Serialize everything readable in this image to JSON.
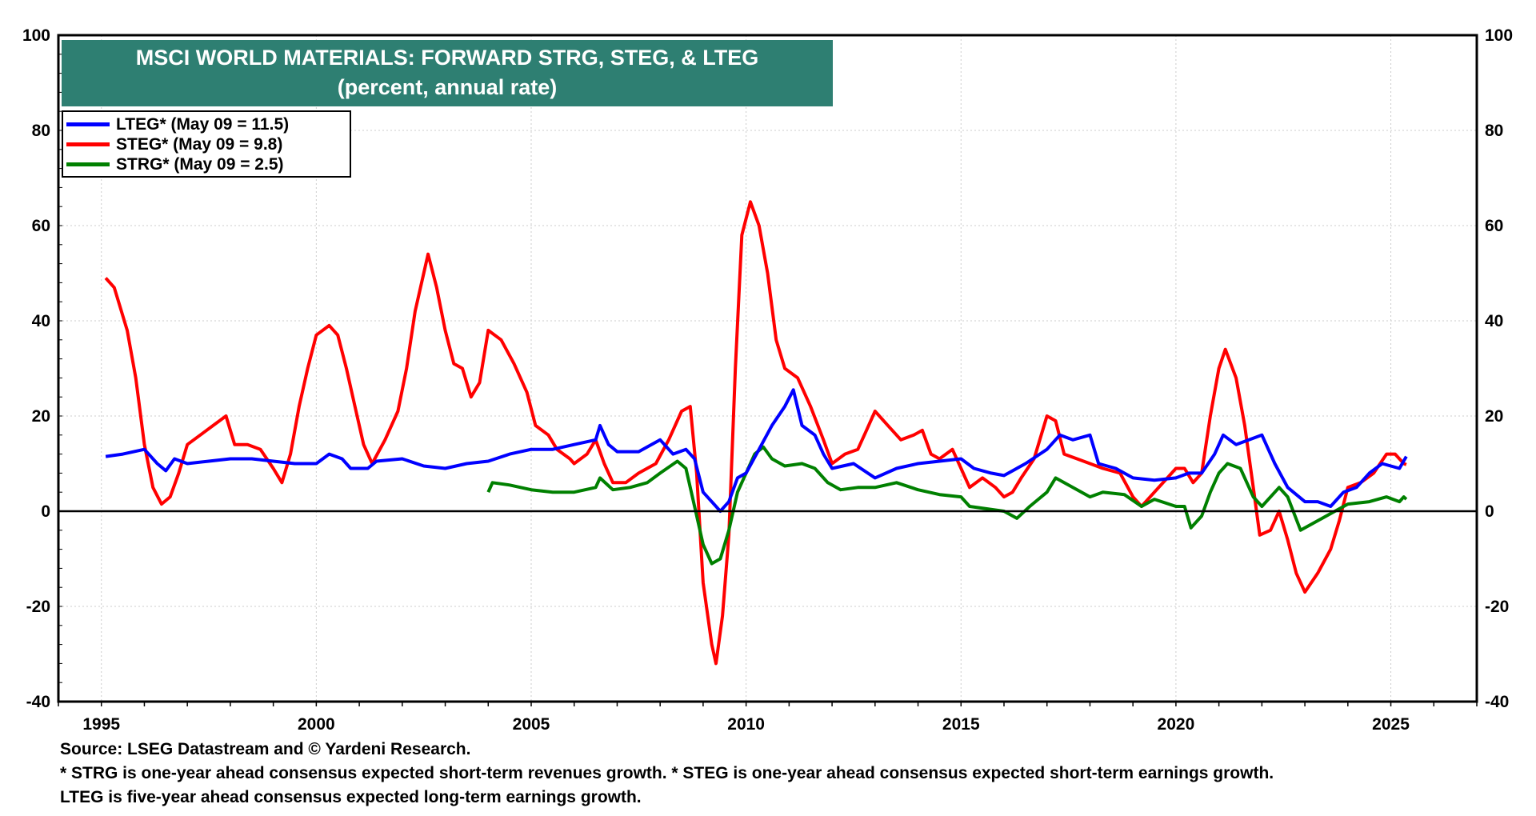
{
  "chart_data": {
    "type": "line",
    "title": "MSCI WORLD MATERIALS: FORWARD STRG, STEG, & LTEG",
    "subtitle": "(percent, annual rate)",
    "xlim": [
      1994,
      2027
    ],
    "ylim": [
      -40,
      100
    ],
    "x_ticks": [
      "1995",
      "2000",
      "2005",
      "2010",
      "2015",
      "2020",
      "2025"
    ],
    "y_ticks": [
      "100",
      "80",
      "60",
      "40",
      "20",
      "0",
      "-20",
      "-40"
    ],
    "grid": true,
    "legend_position": "top-left",
    "series": [
      {
        "name": "LTEG* (May 09 = 11.5)",
        "color": "#0000ff",
        "points": [
          [
            1995.1,
            11.5
          ],
          [
            1995.5,
            12
          ],
          [
            1996.0,
            13
          ],
          [
            1996.3,
            10
          ],
          [
            1996.5,
            8.5
          ],
          [
            1996.7,
            11
          ],
          [
            1997,
            10
          ],
          [
            1997.5,
            10.5
          ],
          [
            1998,
            11
          ],
          [
            1998.5,
            11
          ],
          [
            1999,
            10.5
          ],
          [
            1999.5,
            10
          ],
          [
            2000,
            10
          ],
          [
            2000.3,
            12
          ],
          [
            2000.6,
            11
          ],
          [
            2000.8,
            9
          ],
          [
            2001.2,
            9
          ],
          [
            2001.4,
            10.5
          ],
          [
            2002,
            11
          ],
          [
            2002.5,
            9.5
          ],
          [
            2003,
            9
          ],
          [
            2003.5,
            10
          ],
          [
            2004,
            10.5
          ],
          [
            2004.5,
            12
          ],
          [
            2005,
            13
          ],
          [
            2005.5,
            13
          ],
          [
            2006,
            14
          ],
          [
            2006.5,
            15
          ],
          [
            2006.6,
            18
          ],
          [
            2006.8,
            14
          ],
          [
            2007,
            12.5
          ],
          [
            2007.5,
            12.5
          ],
          [
            2008,
            15
          ],
          [
            2008.3,
            12
          ],
          [
            2008.6,
            13
          ],
          [
            2008.8,
            11
          ],
          [
            2009,
            4
          ],
          [
            2009.2,
            2
          ],
          [
            2009.4,
            0
          ],
          [
            2009.6,
            2
          ],
          [
            2009.8,
            7
          ],
          [
            2010,
            8
          ],
          [
            2010.3,
            13
          ],
          [
            2010.6,
            18
          ],
          [
            2010.9,
            22
          ],
          [
            2011.1,
            25.5
          ],
          [
            2011.3,
            18
          ],
          [
            2011.6,
            16
          ],
          [
            2011.8,
            12
          ],
          [
            2012,
            9
          ],
          [
            2012.5,
            10
          ],
          [
            2013,
            7
          ],
          [
            2013.5,
            9
          ],
          [
            2014,
            10
          ],
          [
            2014.5,
            10.5
          ],
          [
            2015,
            11
          ],
          [
            2015.3,
            9
          ],
          [
            2015.7,
            8
          ],
          [
            2016,
            7.5
          ],
          [
            2016.5,
            10
          ],
          [
            2017,
            13
          ],
          [
            2017.3,
            16
          ],
          [
            2017.6,
            15
          ],
          [
            2018,
            16
          ],
          [
            2018.2,
            10
          ],
          [
            2018.6,
            9
          ],
          [
            2019,
            7
          ],
          [
            2019.5,
            6.5
          ],
          [
            2020,
            7
          ],
          [
            2020.3,
            8
          ],
          [
            2020.6,
            8
          ],
          [
            2020.9,
            12
          ],
          [
            2021.1,
            16
          ],
          [
            2021.4,
            14
          ],
          [
            2021.7,
            15
          ],
          [
            2022,
            16
          ],
          [
            2022.3,
            10
          ],
          [
            2022.6,
            5
          ],
          [
            2023,
            2
          ],
          [
            2023.3,
            2
          ],
          [
            2023.6,
            1
          ],
          [
            2023.9,
            4
          ],
          [
            2024.2,
            5
          ],
          [
            2024.5,
            8
          ],
          [
            2024.8,
            10
          ],
          [
            2025,
            9.5
          ],
          [
            2025.2,
            9
          ],
          [
            2025.36,
            11.5
          ]
        ]
      },
      {
        "name": "STEG* (May 09 = 9.8)",
        "color": "#ff0000",
        "points": [
          [
            1995.1,
            49
          ],
          [
            1995.3,
            47
          ],
          [
            1995.6,
            38
          ],
          [
            1995.8,
            28
          ],
          [
            1996.0,
            14
          ],
          [
            1996.2,
            5
          ],
          [
            1996.4,
            1.5
          ],
          [
            1996.6,
            3
          ],
          [
            1996.8,
            8
          ],
          [
            1997.0,
            14
          ],
          [
            1997.3,
            16
          ],
          [
            1997.6,
            18
          ],
          [
            1997.9,
            20
          ],
          [
            1998.1,
            14
          ],
          [
            1998.4,
            14
          ],
          [
            1998.7,
            13
          ],
          [
            1999,
            9
          ],
          [
            1999.2,
            6
          ],
          [
            1999.4,
            12
          ],
          [
            1999.6,
            22
          ],
          [
            1999.8,
            30
          ],
          [
            2000,
            37
          ],
          [
            2000.3,
            39
          ],
          [
            2000.5,
            37
          ],
          [
            2000.7,
            30
          ],
          [
            2000.9,
            22
          ],
          [
            2001.1,
            14
          ],
          [
            2001.3,
            10
          ],
          [
            2001.6,
            15
          ],
          [
            2001.9,
            21
          ],
          [
            2002.1,
            30
          ],
          [
            2002.3,
            42
          ],
          [
            2002.5,
            50
          ],
          [
            2002.6,
            54
          ],
          [
            2002.8,
            47
          ],
          [
            2003,
            38
          ],
          [
            2003.2,
            31
          ],
          [
            2003.4,
            30
          ],
          [
            2003.6,
            24
          ],
          [
            2003.8,
            27
          ],
          [
            2004,
            38
          ],
          [
            2004.3,
            36
          ],
          [
            2004.6,
            31
          ],
          [
            2004.9,
            25
          ],
          [
            2005.1,
            18
          ],
          [
            2005.4,
            16
          ],
          [
            2005.6,
            13
          ],
          [
            2005.9,
            11
          ],
          [
            2006,
            10
          ],
          [
            2006.3,
            12
          ],
          [
            2006.5,
            15
          ],
          [
            2006.7,
            10
          ],
          [
            2006.9,
            6
          ],
          [
            2007.2,
            6
          ],
          [
            2007.5,
            8
          ],
          [
            2007.9,
            10
          ],
          [
            2008.2,
            15
          ],
          [
            2008.5,
            21
          ],
          [
            2008.7,
            22
          ],
          [
            2008.85,
            8
          ],
          [
            2009.0,
            -15
          ],
          [
            2009.2,
            -28
          ],
          [
            2009.3,
            -32
          ],
          [
            2009.45,
            -22
          ],
          [
            2009.6,
            -5
          ],
          [
            2009.75,
            30
          ],
          [
            2009.9,
            58
          ],
          [
            2010.1,
            65
          ],
          [
            2010.3,
            60
          ],
          [
            2010.5,
            50
          ],
          [
            2010.7,
            36
          ],
          [
            2010.9,
            30
          ],
          [
            2011.2,
            28
          ],
          [
            2011.5,
            22
          ],
          [
            2011.8,
            15
          ],
          [
            2012,
            10
          ],
          [
            2012.3,
            12
          ],
          [
            2012.6,
            13
          ],
          [
            2012.8,
            17
          ],
          [
            2013,
            21
          ],
          [
            2013.3,
            18
          ],
          [
            2013.6,
            15
          ],
          [
            2013.9,
            16
          ],
          [
            2014.1,
            17
          ],
          [
            2014.3,
            12
          ],
          [
            2014.5,
            11
          ],
          [
            2014.8,
            13
          ],
          [
            2015,
            9
          ],
          [
            2015.2,
            5
          ],
          [
            2015.5,
            7
          ],
          [
            2015.8,
            5
          ],
          [
            2016,
            3
          ],
          [
            2016.2,
            4
          ],
          [
            2016.4,
            7
          ],
          [
            2016.7,
            11
          ],
          [
            2017,
            20
          ],
          [
            2017.2,
            19
          ],
          [
            2017.4,
            12
          ],
          [
            2017.7,
            11
          ],
          [
            2018,
            10
          ],
          [
            2018.3,
            9
          ],
          [
            2018.7,
            8
          ],
          [
            2019.0,
            3
          ],
          [
            2019.2,
            1
          ],
          [
            2019.5,
            4
          ],
          [
            2019.8,
            7
          ],
          [
            2020,
            9
          ],
          [
            2020.2,
            9
          ],
          [
            2020.4,
            6
          ],
          [
            2020.6,
            8
          ],
          [
            2020.8,
            20
          ],
          [
            2021.0,
            30
          ],
          [
            2021.15,
            34
          ],
          [
            2021.4,
            28
          ],
          [
            2021.6,
            18
          ],
          [
            2021.8,
            5
          ],
          [
            2021.95,
            -5
          ],
          [
            2022.2,
            -4
          ],
          [
            2022.4,
            0
          ],
          [
            2022.6,
            -6
          ],
          [
            2022.8,
            -13
          ],
          [
            2023,
            -17
          ],
          [
            2023.3,
            -13
          ],
          [
            2023.6,
            -8
          ],
          [
            2023.8,
            -2
          ],
          [
            2024,
            5
          ],
          [
            2024.3,
            6
          ],
          [
            2024.6,
            8
          ],
          [
            2024.9,
            12
          ],
          [
            2025.1,
            12
          ],
          [
            2025.3,
            10
          ],
          [
            2025.36,
            9.8
          ]
        ]
      },
      {
        "name": "STRG* (May 09 = 2.5)",
        "color": "#008000",
        "points": [
          [
            2004.0,
            4
          ],
          [
            2004.1,
            6
          ],
          [
            2004.5,
            5.5
          ],
          [
            2005,
            4.5
          ],
          [
            2005.5,
            4
          ],
          [
            2006,
            4
          ],
          [
            2006.5,
            5
          ],
          [
            2006.6,
            7
          ],
          [
            2006.9,
            4.5
          ],
          [
            2007.3,
            5
          ],
          [
            2007.7,
            6
          ],
          [
            2008,
            8
          ],
          [
            2008.4,
            10.5
          ],
          [
            2008.6,
            9
          ],
          [
            2008.8,
            1
          ],
          [
            2009,
            -7
          ],
          [
            2009.2,
            -11
          ],
          [
            2009.4,
            -10
          ],
          [
            2009.6,
            -4
          ],
          [
            2009.8,
            4
          ],
          [
            2010,
            8
          ],
          [
            2010.2,
            12
          ],
          [
            2010.4,
            13.5
          ],
          [
            2010.6,
            11
          ],
          [
            2010.9,
            9.5
          ],
          [
            2011.3,
            10
          ],
          [
            2011.6,
            9
          ],
          [
            2011.9,
            6
          ],
          [
            2012.2,
            4.5
          ],
          [
            2012.6,
            5
          ],
          [
            2013,
            5
          ],
          [
            2013.5,
            6
          ],
          [
            2014,
            4.5
          ],
          [
            2014.5,
            3.5
          ],
          [
            2015,
            3
          ],
          [
            2015.2,
            1
          ],
          [
            2015.6,
            0.5
          ],
          [
            2016,
            0
          ],
          [
            2016.3,
            -1.5
          ],
          [
            2016.6,
            1
          ],
          [
            2017,
            4
          ],
          [
            2017.2,
            7
          ],
          [
            2017.6,
            5
          ],
          [
            2018,
            3
          ],
          [
            2018.3,
            4
          ],
          [
            2018.8,
            3.5
          ],
          [
            2019.2,
            1
          ],
          [
            2019.5,
            2.5
          ],
          [
            2020,
            1
          ],
          [
            2020.2,
            1
          ],
          [
            2020.35,
            -3.5
          ],
          [
            2020.6,
            -1
          ],
          [
            2020.8,
            4
          ],
          [
            2021,
            8
          ],
          [
            2021.2,
            10
          ],
          [
            2021.5,
            9
          ],
          [
            2021.8,
            3
          ],
          [
            2022,
            1
          ],
          [
            2022.4,
            5
          ],
          [
            2022.6,
            3
          ],
          [
            2022.9,
            -4
          ],
          [
            2023.3,
            -2
          ],
          [
            2023.7,
            0
          ],
          [
            2024,
            1.5
          ],
          [
            2024.5,
            2
          ],
          [
            2024.9,
            3
          ],
          [
            2025.2,
            2
          ],
          [
            2025.3,
            3
          ],
          [
            2025.36,
            2.5
          ]
        ]
      }
    ],
    "footnotes": [
      "Source: LSEG Datastream and © Yardeni Research.",
      "* STRG is one-year ahead consensus expected short-term revenues growth. * STEG is one-year ahead consensus expected short-term earnings growth.",
      "LTEG is five-year ahead consensus expected long-term earnings growth."
    ]
  }
}
